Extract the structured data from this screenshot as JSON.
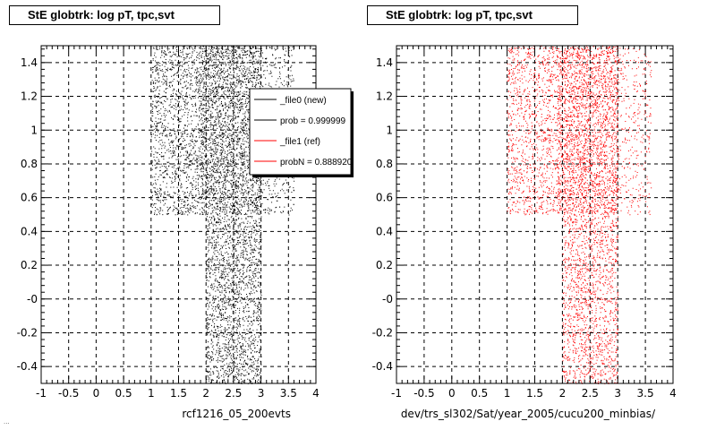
{
  "page": {
    "footer_text": "..."
  },
  "chart_data": [
    {
      "type": "scatter",
      "title": "StE globtrk: log pT, tpc,svt",
      "xlabel": "rcf1216_05_200evts",
      "ylabel": "",
      "xlim": [
        -1,
        4
      ],
      "ylim": [
        -0.5,
        1.5
      ],
      "xticks": [
        "-1",
        "-0.5",
        "0",
        "0.5",
        "1",
        "1.5",
        "2",
        "2.5",
        "3",
        "3.5",
        "4"
      ],
      "yticks": [
        "-0.4",
        "-0.2",
        "-0",
        "0.2",
        "0.4",
        "0.6",
        "0.8",
        "1",
        "1.2",
        "1.4"
      ],
      "grid": true,
      "legend_position": "top-right",
      "legend": [
        {
          "label": "_file0 (new)",
          "color": "#000000"
        },
        {
          "label": "prob = 0.999999",
          "color": "#000000"
        },
        {
          "label": "_file1 (ref)",
          "color": "#ff0000"
        },
        {
          "label": "probN = 0.888920",
          "color": "#ff0000"
        }
      ],
      "series": [
        {
          "color": "#000000",
          "regions": [
            {
              "x": [
                1.0,
                1.9
              ],
              "y": [
                0.5,
                1.5
              ],
              "density": 0.55
            },
            {
              "x": [
                1.9,
                3.0
              ],
              "y": [
                0.5,
                1.5
              ],
              "density": 1.0
            },
            {
              "x": [
                3.0,
                3.6
              ],
              "y": [
                0.5,
                1.5
              ],
              "density": 0.25
            },
            {
              "x": [
                2.0,
                3.0
              ],
              "y": [
                -0.5,
                0.5
              ],
              "density": 0.7
            }
          ]
        }
      ]
    },
    {
      "type": "scatter",
      "title": "StE globtrk: log pT, tpc,svt",
      "xlabel": "dev/trs_sl302/Sat/year_2005/cucu200_minbias/",
      "ylabel": "",
      "xlim": [
        -1,
        4
      ],
      "ylim": [
        -0.5,
        1.5
      ],
      "xticks": [
        "-1",
        "-0.5",
        "0",
        "0.5",
        "1",
        "1.5",
        "2",
        "2.5",
        "3",
        "3.5",
        "4"
      ],
      "yticks": [
        "-0.4",
        "-0.2",
        "-0",
        "0.2",
        "0.4",
        "0.6",
        "0.8",
        "1",
        "1.2",
        "1.4"
      ],
      "grid": true,
      "series": [
        {
          "color": "#ff0000",
          "regions": [
            {
              "x": [
                1.0,
                1.9
              ],
              "y": [
                0.5,
                1.5
              ],
              "density": 0.45
            },
            {
              "x": [
                1.9,
                3.0
              ],
              "y": [
                0.5,
                1.5
              ],
              "density": 0.9
            },
            {
              "x": [
                3.0,
                3.6
              ],
              "y": [
                0.5,
                1.5
              ],
              "density": 0.2
            },
            {
              "x": [
                2.0,
                3.0
              ],
              "y": [
                -0.5,
                0.5
              ],
              "density": 0.55
            }
          ]
        }
      ]
    }
  ]
}
